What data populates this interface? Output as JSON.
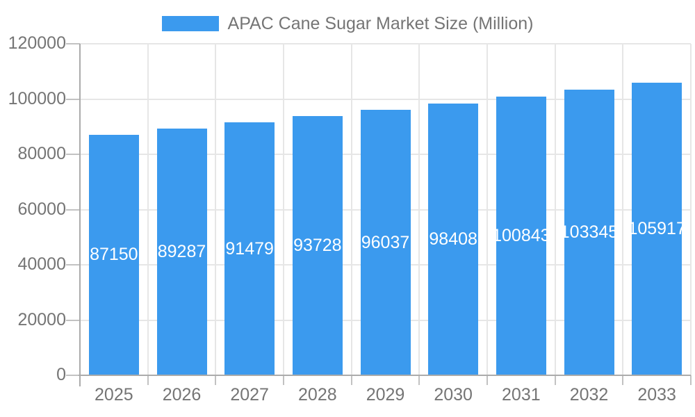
{
  "legend": {
    "label": "APAC Cane Sugar Market Size (Million)"
  },
  "chart_data": {
    "type": "bar",
    "title": "APAC Cane Sugar Market Size (Million)",
    "xlabel": "",
    "ylabel": "",
    "categories": [
      "2025",
      "2026",
      "2027",
      "2028",
      "2029",
      "2030",
      "2031",
      "2032",
      "2033"
    ],
    "values": [
      87150,
      89287,
      91479,
      93728,
      96037,
      98408,
      100843,
      103345,
      105917
    ],
    "value_labels": [
      "87150",
      "89287",
      "91479",
      "93728",
      "96037",
      "98408",
      "100843",
      "103345",
      "105917"
    ],
    "ylim": [
      0,
      120000
    ],
    "ytick_values": [
      0,
      20000,
      40000,
      60000,
      80000,
      100000,
      120000
    ],
    "ytick_labels": [
      "0",
      "20000",
      "40000",
      "60000",
      "80000",
      "100000",
      "120000"
    ],
    "legend_position": "top",
    "grid": true,
    "colors": {
      "bar": "#3B9AEE",
      "bar_value_text": "#ffffff",
      "axis_text": "#757575",
      "gridline": "#e6e6e6",
      "axis_line": "#ababab",
      "tick_line": "#c2c2c2"
    }
  }
}
